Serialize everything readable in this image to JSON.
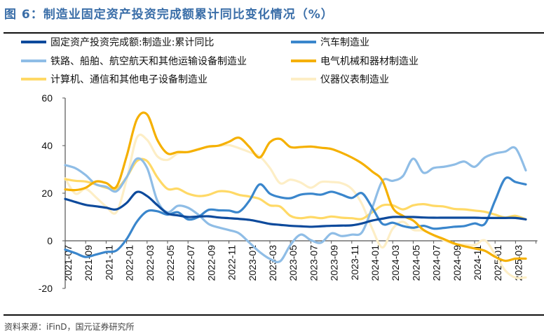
{
  "title": "图 6：制造业固定资产投资完成额累计同比变化情况（%）",
  "source": "资料来源：iFinD，国元证券研究所",
  "chart_data": {
    "type": "line",
    "title": "制造业固定资产投资完成额累计同比变化情况（%）",
    "xlabel": "",
    "ylabel": "%",
    "ylim": [
      -20,
      60
    ],
    "yticks": [
      "60",
      "40",
      "20",
      "0",
      "-20"
    ],
    "ytick_values": [
      60,
      40,
      20,
      0,
      -20
    ],
    "xtick_labels": [
      "2021-07",
      "2021-09",
      "2021-11",
      "2022-01",
      "2022-03",
      "2022-05",
      "2022-07",
      "2022-09",
      "2022-11",
      "2023-01",
      "2023-03",
      "2023-05",
      "2023-07",
      "2023-09",
      "2023-11",
      "2024-01",
      "2024-03",
      "2024-05",
      "2024-07",
      "2024-09",
      "2024-11",
      "2025-01",
      "2025-03"
    ],
    "x": [
      "2021-07",
      "2021-08",
      "2021-09",
      "2021-10",
      "2021-11",
      "2021-12",
      "2022-01",
      "2022-02",
      "2022-03",
      "2022-04",
      "2022-05",
      "2022-06",
      "2022-07",
      "2022-08",
      "2022-09",
      "2022-10",
      "2022-11",
      "2022-12",
      "2023-01",
      "2023-02",
      "2023-03",
      "2023-04",
      "2023-05",
      "2023-06",
      "2023-07",
      "2023-08",
      "2023-09",
      "2023-10",
      "2023-11",
      "2023-12",
      "2024-01",
      "2024-02",
      "2024-03",
      "2024-04",
      "2024-05",
      "2024-06",
      "2024-07",
      "2024-08",
      "2024-09",
      "2024-10",
      "2024-11",
      "2024-12",
      "2025-01",
      "2025-02",
      "2025-03",
      "2025-04"
    ],
    "legend_position": "top",
    "grid": false,
    "series": [
      {
        "name": "固定资产投资完成额:制造业:累计同比",
        "color": "#0d4a9c",
        "values": [
          17.6,
          16.3,
          15.1,
          14.5,
          13.9,
          13.2,
          15.9,
          20.5,
          18.8,
          15.0,
          11.5,
          10.7,
          10.0,
          10.2,
          10.3,
          9.8,
          9.5,
          9.2,
          8.8,
          8.0,
          7.1,
          6.7,
          6.3,
          6.1,
          5.9,
          6.1,
          6.3,
          6.4,
          6.5,
          7.3,
          8.5,
          9.3,
          10.0,
          10.0,
          10.0,
          9.8,
          9.7,
          9.7,
          9.7,
          9.7,
          9.7,
          9.6,
          9.6,
          9.6,
          9.6,
          9.0
        ]
      },
      {
        "name": "汽车制造业",
        "color": "#3a86cc",
        "values": [
          -3.7,
          -5.2,
          -6.8,
          -5.8,
          -4.7,
          -4.1,
          0.7,
          8.0,
          12.4,
          12.4,
          11.0,
          12.0,
          9.0,
          10.0,
          13.0,
          12.8,
          12.7,
          12.2,
          16.9,
          23.7,
          19.8,
          18.3,
          17.9,
          19.4,
          19.8,
          19.4,
          20.6,
          19.4,
          18.0,
          20.0,
          13.9,
          7.1,
          7.6,
          6.2,
          5.5,
          6.3,
          5.1,
          5.4,
          5.9,
          6.2,
          7.3,
          7.1,
          16.9,
          26.2,
          24.7,
          23.7
        ]
      },
      {
        "name": "铁路、船舶、航空航天和其他运输设备制造业",
        "color": "#8fbde6",
        "values": [
          31.8,
          30.5,
          27.6,
          23.7,
          22.7,
          20.8,
          26.7,
          34.5,
          30.6,
          16.9,
          12.0,
          14.7,
          13.9,
          11.0,
          7.1,
          5.6,
          4.5,
          3.1,
          -0.8,
          -4.7,
          -7.6,
          -8.6,
          -1.8,
          2.6,
          0.3,
          -0.8,
          3.1,
          2.0,
          2.6,
          3.6,
          13.9,
          25.2,
          25.2,
          27.2,
          34.5,
          28.6,
          30.6,
          31.1,
          32.0,
          33.3,
          31.1,
          35.0,
          36.7,
          37.5,
          38.9,
          29.6
        ]
      },
      {
        "name": "电气机械和器材制造业",
        "color": "#f5b000",
        "values": [
          21.6,
          21.3,
          22.3,
          24.9,
          24.3,
          22.7,
          35.5,
          51.0,
          53.1,
          42.4,
          36.7,
          37.3,
          37.3,
          38.4,
          39.6,
          40.0,
          41.6,
          43.3,
          39.4,
          35.0,
          41.4,
          42.8,
          39.4,
          39.4,
          39.6,
          39.1,
          38.6,
          37.0,
          35.0,
          32.5,
          29.1,
          25.2,
          13.9,
          10.5,
          8.5,
          4.6,
          2.4,
          0.7,
          -1.1,
          -2.3,
          -3.2,
          -4.2,
          -6.7,
          -8.4,
          -7.5,
          -7.5
        ]
      },
      {
        "name": "计算机、通信和其他电子设备制造业",
        "color": "#ffd966",
        "values": [
          25.9,
          25.2,
          24.9,
          23.7,
          22.3,
          21.8,
          26.7,
          33.5,
          33.5,
          26.7,
          21.8,
          21.9,
          19.8,
          18.8,
          19.3,
          20.8,
          20.6,
          19.3,
          18.6,
          17.6,
          14.9,
          14.4,
          10.5,
          9.5,
          10.0,
          9.5,
          10.2,
          9.7,
          9.5,
          9.2,
          12.0,
          14.9,
          14.9,
          13.2,
          14.9,
          15.4,
          14.7,
          14.4,
          13.4,
          13.2,
          12.7,
          12.2,
          11.0,
          9.8,
          10.5,
          9.0
        ]
      },
      {
        "name": "仪器仪表制造业",
        "color": "#fdeec6",
        "values": [
          26.2,
          19.8,
          21.8,
          18.3,
          14.4,
          12.0,
          25.7,
          43.3,
          42.4,
          35.5,
          34.0,
          36.7,
          37.3,
          38.6,
          39.4,
          39.9,
          40.2,
          38.9,
          37.3,
          35.5,
          30.6,
          24.2,
          25.7,
          24.5,
          22.3,
          24.7,
          24.7,
          24.2,
          21.8,
          15.4,
          5.1,
          -2.8,
          5.1,
          8.0,
          4.6,
          4.3,
          2.2,
          0.2,
          -1.3,
          -1.6,
          -1.8,
          0.2,
          -5.7,
          -12.5,
          -15.5,
          -15.4
        ]
      }
    ]
  }
}
